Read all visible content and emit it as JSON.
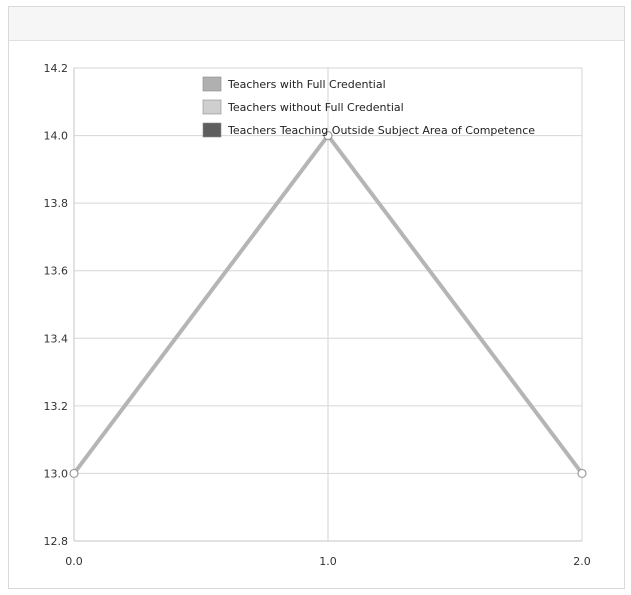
{
  "chart_data": {
    "type": "line",
    "x_ticks": [
      0.0,
      1.0,
      2.0
    ],
    "x_tick_labels": [
      "0.0",
      "1.0",
      "2.0"
    ],
    "y_ticks": [
      12.8,
      13.0,
      13.2,
      13.4,
      13.6,
      13.8,
      14.0,
      14.2
    ],
    "y_tick_labels": [
      "12.8",
      "13.0",
      "13.2",
      "13.4",
      "13.6",
      "13.8",
      "14.0",
      "14.2"
    ],
    "xlim": [
      0.0,
      2.0
    ],
    "ylim": [
      12.8,
      14.2
    ],
    "grid": true,
    "legend_position": "top-center",
    "legend": [
      {
        "label": "Teachers with Full Credential",
        "color": "#b0b0b0"
      },
      {
        "label": "Teachers without Full Credential",
        "color": "#cfcfcf"
      },
      {
        "label": "Teachers Teaching Outside Subject Area of Competence",
        "color": "#5e5e5e"
      }
    ],
    "series": [
      {
        "name": "Teachers with Full Credential",
        "color": "#b5b5b5",
        "x": [
          0.0,
          1.0,
          2.0
        ],
        "y": [
          13.0,
          14.0,
          13.0
        ]
      }
    ]
  }
}
